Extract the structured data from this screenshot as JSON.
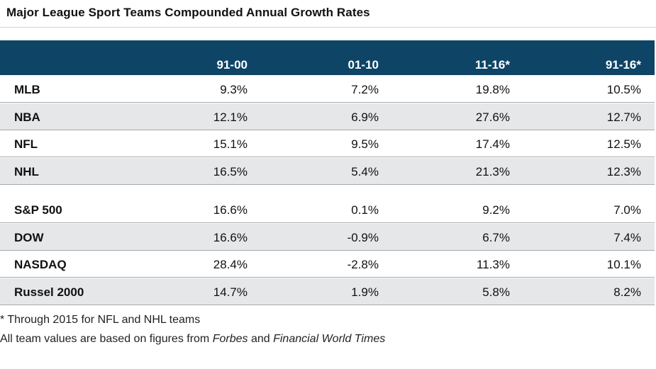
{
  "title": "Major League Sport Teams Compounded Annual Growth Rates",
  "chart_data": {
    "type": "table",
    "columns": [
      "91-00",
      "01-10",
      "11-16*",
      "91-16*"
    ],
    "groups": [
      {
        "rows": [
          {
            "label": "MLB",
            "values": [
              "9.3%",
              "7.2%",
              "19.8%",
              "10.5%"
            ]
          },
          {
            "label": "NBA",
            "values": [
              "12.1%",
              "6.9%",
              "27.6%",
              "12.7%"
            ]
          },
          {
            "label": "NFL",
            "values": [
              "15.1%",
              "9.5%",
              "17.4%",
              "12.5%"
            ]
          },
          {
            "label": "NHL",
            "values": [
              "16.5%",
              "5.4%",
              "21.3%",
              "12.3%"
            ]
          }
        ]
      },
      {
        "rows": [
          {
            "label": "S&P 500",
            "values": [
              "16.6%",
              "0.1%",
              "9.2%",
              "7.0%"
            ]
          },
          {
            "label": "DOW",
            "values": [
              "16.6%",
              "-0.9%",
              "6.7%",
              "7.4%"
            ]
          },
          {
            "label": "NASDAQ",
            "values": [
              "28.4%",
              "-2.8%",
              "11.3%",
              "10.1%"
            ]
          },
          {
            "label": "Russel 2000",
            "values": [
              "14.7%",
              "1.9%",
              "5.8%",
              "8.2%"
            ]
          }
        ]
      }
    ]
  },
  "footnotes": {
    "note1": "* Through 2015 for NFL and NHL teams",
    "note2_prefix": "All team values are based on figures from ",
    "note2_source1": "Forbes",
    "note2_middle": " and ",
    "note2_source2": "Financial World Times"
  },
  "colors": {
    "header_bg": "#0e4466",
    "row_shade": "#e6e7e8",
    "row_rule": "#a7a9ac"
  }
}
